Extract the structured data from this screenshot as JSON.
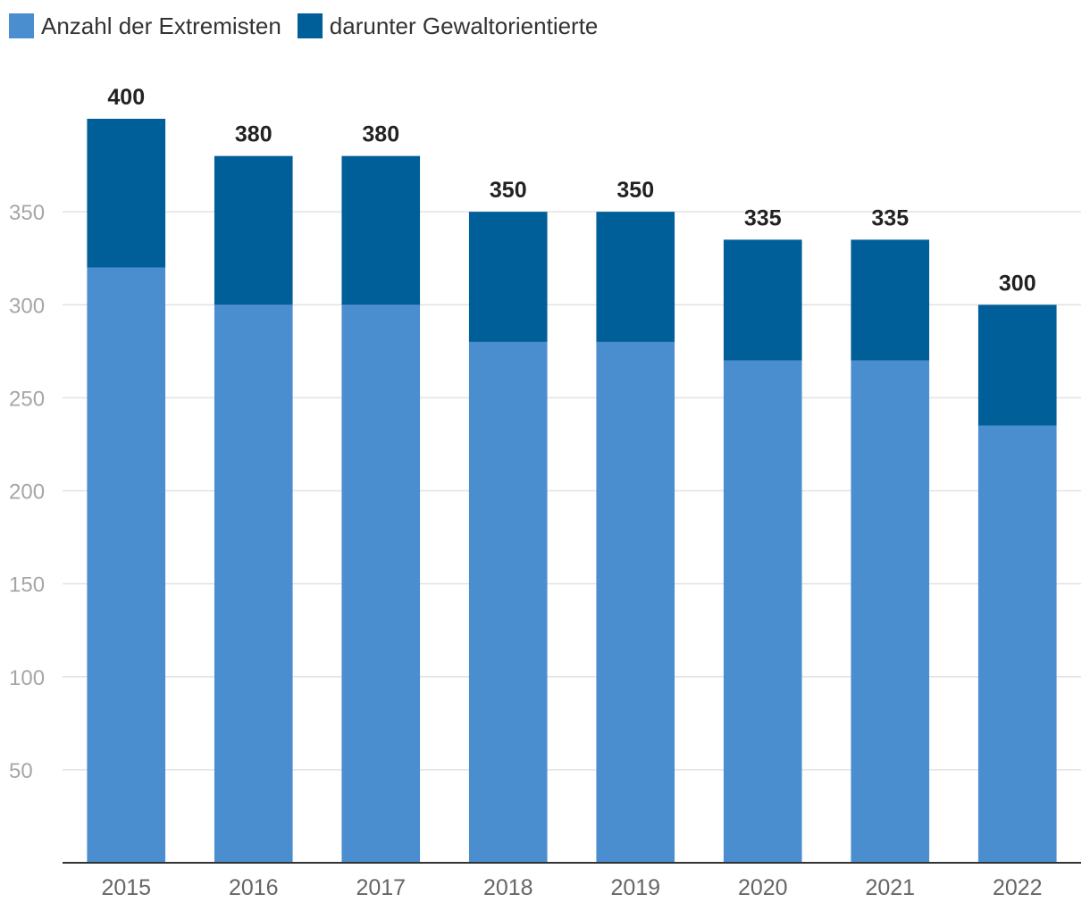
{
  "colors": {
    "base": "#4a8ecf",
    "top": "#005f99",
    "grid": "#e2e2e2",
    "axis": "#333333"
  },
  "legend": [
    {
      "label": "Anzahl der Extremisten",
      "color": "#4a8ecf"
    },
    {
      "label": "darunter Gewaltorientierte",
      "color": "#005f99"
    }
  ],
  "chart_data": {
    "type": "bar",
    "stacked": true,
    "categories": [
      "2015",
      "2016",
      "2017",
      "2018",
      "2019",
      "2020",
      "2021",
      "2022"
    ],
    "series": [
      {
        "name": "Anzahl der Extremisten",
        "values": [
          320,
          300,
          300,
          280,
          280,
          270,
          270,
          235
        ]
      },
      {
        "name": "darunter Gewaltorientierte",
        "values": [
          80,
          80,
          80,
          70,
          70,
          65,
          65,
          65
        ]
      }
    ],
    "totals": [
      400,
      380,
      380,
      350,
      350,
      335,
      335,
      300
    ],
    "y_ticks": [
      50,
      100,
      150,
      200,
      250,
      300,
      350
    ],
    "ylim": [
      0,
      400
    ],
    "grid": true,
    "legend_position": "top-left"
  }
}
